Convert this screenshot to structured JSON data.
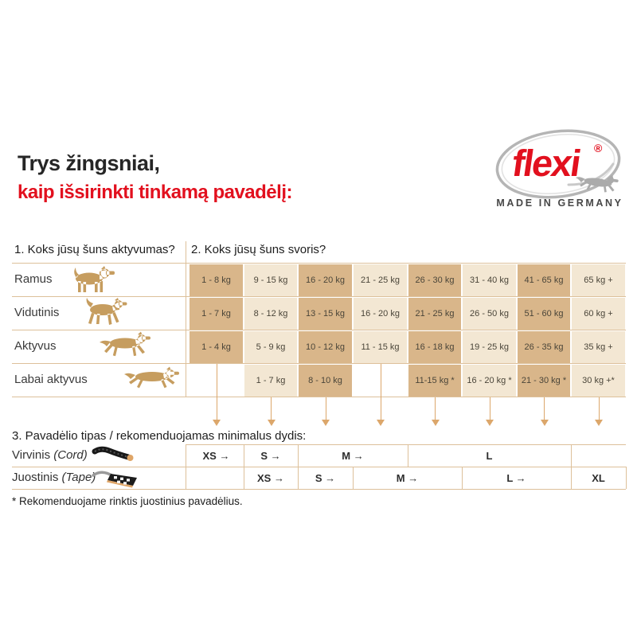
{
  "title": {
    "line1": "Trys žingsniai,",
    "line2": "kaip išsirinkti tinkamą pavadėlį:"
  },
  "logo": {
    "brand": "flexi",
    "registered": "®",
    "tagline": "MADE IN GERMANY"
  },
  "headers": {
    "activity": "1. Koks jūsų šuns aktyvumas?",
    "weight": "2. Koks jūsų šuns svoris?",
    "type": "3. Pavadėlio tipas / rekomenduojamas minimalus dydis:"
  },
  "activity_rows": [
    {
      "label": "Ramus",
      "icon": "dog-standing-icon",
      "weights": [
        "1 - 8 kg",
        "9 - 15 kg",
        "16 - 20 kg",
        "21 - 25 kg",
        "26 - 30 kg",
        "31 - 40 kg",
        "41 - 65 kg",
        "65 kg +"
      ]
    },
    {
      "label": "Vidutinis",
      "icon": "dog-trotting-icon",
      "weights": [
        "1 - 7 kg",
        "8 - 12 kg",
        "13 - 15 kg",
        "16 - 20 kg",
        "21 - 25 kg",
        "26 - 50 kg",
        "51 - 60 kg",
        "60 kg +"
      ]
    },
    {
      "label": "Aktyvus",
      "icon": "dog-running-icon",
      "weights": [
        "1 - 4 kg",
        "5 - 9 kg",
        "10 - 12 kg",
        "11 - 15 kg",
        "16 - 18 kg",
        "19 - 25 kg",
        "26 - 35 kg",
        "35 kg +"
      ]
    },
    {
      "label": "Labai aktyvus",
      "icon": "dog-sprinting-icon",
      "weights": [
        null,
        "1 - 7 kg",
        "8 - 10 kg",
        null,
        "11-15 kg *",
        "16 - 20 kg *",
        "21 - 30 kg *",
        "30 kg +*"
      ]
    }
  ],
  "size_rows": [
    {
      "label": "Virvinis",
      "sub": "(Cord)",
      "icon": "cord-leash-icon",
      "cells": [
        {
          "label": "XS →",
          "col": 0,
          "span": 1
        },
        {
          "label": "S →",
          "col": 1,
          "span": 1
        },
        {
          "label": "M →",
          "col": 2,
          "span": 2
        },
        {
          "label": "L",
          "col": 4,
          "span": 3
        },
        {
          "label": "",
          "col": 7,
          "span": 1
        }
      ]
    },
    {
      "label": "Juostinis",
      "sub": "(Tape)",
      "icon": "tape-leash-icon",
      "cells": [
        {
          "label": "",
          "col": 0,
          "span": 1
        },
        {
          "label": "XS →",
          "col": 1,
          "span": 1
        },
        {
          "label": "S →",
          "col": 2,
          "span": 1
        },
        {
          "label": "M →",
          "col": 3,
          "span": 2
        },
        {
          "label": "L →",
          "col": 5,
          "span": 2
        },
        {
          "label": "XL",
          "col": 7,
          "span": 1
        }
      ]
    }
  ],
  "footnote": "* Rekomenduojame rinktis juostinius pavadėlius.",
  "colors": {
    "brand_red": "#e2101e",
    "cell_dark": "#d9b68a",
    "cell_light": "#f3e7d3",
    "line_tan": "#ddc09a",
    "arrow": "#dca76b",
    "icon_tan": "#c69d5f",
    "text_dark": "#1d1d1d",
    "cell_text": "#4a4539"
  }
}
